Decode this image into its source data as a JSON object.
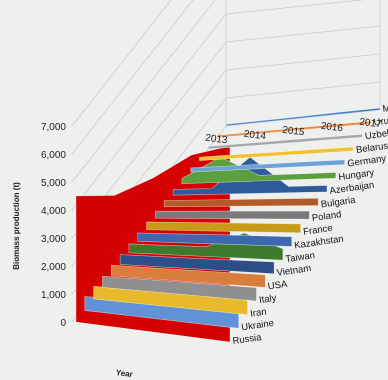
{
  "chart_data": {
    "type": "area",
    "title": "",
    "xlabel": "Year",
    "ylabel": "Biomass production (t)",
    "ylim": [
      0,
      7000
    ],
    "yticks": [
      "0",
      "1,000",
      "2,000",
      "3,000",
      "4,000",
      "5,000",
      "6,000",
      "7,000"
    ],
    "x": [
      "2013",
      "2014",
      "2015",
      "2016",
      "2017"
    ],
    "grid": true,
    "series": [
      {
        "name": "Moldova",
        "color": "#4a7fc8",
        "values": [
          60,
          60,
          60,
          70,
          70
        ]
      },
      {
        "name": "Uruguay",
        "color": "#f08a4b",
        "values": [
          80,
          80,
          90,
          90,
          90
        ]
      },
      {
        "name": "Uzbekistan",
        "color": "#a8a8a8",
        "values": [
          100,
          100,
          110,
          110,
          110
        ]
      },
      {
        "name": "Belarus",
        "color": "#f2c12e",
        "values": [
          120,
          130,
          130,
          140,
          140
        ]
      },
      {
        "name": "Germany",
        "color": "#6ea3d8",
        "values": [
          150,
          150,
          160,
          170,
          170
        ]
      },
      {
        "name": "Hungary",
        "color": "#5aa03c",
        "values": [
          180,
          900,
          200,
          200,
          210
        ]
      },
      {
        "name": "Azerbaijan",
        "color": "#2f5b9a",
        "values": [
          200,
          210,
          1300,
          220,
          230
        ]
      },
      {
        "name": "Bulgaria",
        "color": "#b25a28",
        "values": [
          220,
          230,
          240,
          250,
          260
        ]
      },
      {
        "name": "Poland",
        "color": "#7a7a7a",
        "values": [
          250,
          260,
          270,
          280,
          290
        ]
      },
      {
        "name": "France",
        "color": "#c79a18",
        "values": [
          280,
          290,
          300,
          310,
          320
        ]
      },
      {
        "name": "Kazakhstan",
        "color": "#3d68b0",
        "values": [
          300,
          310,
          330,
          340,
          350
        ]
      },
      {
        "name": "Taiwan",
        "color": "#3e7a2e",
        "values": [
          320,
          330,
          350,
          900,
          400
        ]
      },
      {
        "name": "Vietnam",
        "color": "#2b4f86",
        "values": [
          350,
          360,
          380,
          400,
          420
        ]
      },
      {
        "name": "USA",
        "color": "#d87d3c",
        "values": [
          380,
          390,
          410,
          430,
          450
        ]
      },
      {
        "name": "Italy",
        "color": "#8f8f8f",
        "values": [
          400,
          420,
          440,
          460,
          480
        ]
      },
      {
        "name": "Iran",
        "color": "#e8b92a",
        "values": [
          450,
          470,
          900,
          700,
          500
        ]
      },
      {
        "name": "Ukraine",
        "color": "#5f93d6",
        "values": [
          500,
          550,
          700,
          900,
          1200
        ]
      },
      {
        "name": "Russia",
        "color": "#d50000",
        "values": [
          4500,
          4700,
          5500,
          6500,
          7000
        ]
      }
    ]
  }
}
